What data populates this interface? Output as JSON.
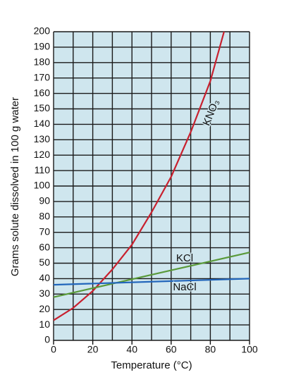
{
  "chart_data": {
    "type": "line",
    "x_label": "Temperature (°C)",
    "y_label": "Grams solute dissolved in 100 g water",
    "xlim": [
      0,
      100
    ],
    "xticks": [
      0,
      20,
      40,
      60,
      80,
      100
    ],
    "xgrid": [
      0,
      10,
      20,
      30,
      40,
      50,
      60,
      70,
      80,
      90,
      100
    ],
    "ylim": [
      0,
      200
    ],
    "yticks": [
      0,
      10,
      20,
      30,
      40,
      50,
      60,
      70,
      80,
      90,
      100,
      110,
      120,
      130,
      140,
      150,
      160,
      170,
      180,
      190,
      200
    ],
    "grid": true,
    "series": [
      {
        "name": "KNO₃",
        "color": "#c8202e",
        "x": [
          0,
          10,
          20,
          30,
          40,
          50,
          60,
          70,
          80,
          87
        ],
        "values": [
          13,
          21,
          32,
          46,
          62,
          83,
          106,
          135,
          168,
          200
        ]
      },
      {
        "name": "KCl",
        "color": "#5a9a3a",
        "x": [
          0,
          100
        ],
        "values": [
          28,
          57
        ]
      },
      {
        "name": "NaCl",
        "color": "#2266bb",
        "x": [
          0,
          100
        ],
        "values": [
          36,
          40
        ]
      }
    ]
  }
}
